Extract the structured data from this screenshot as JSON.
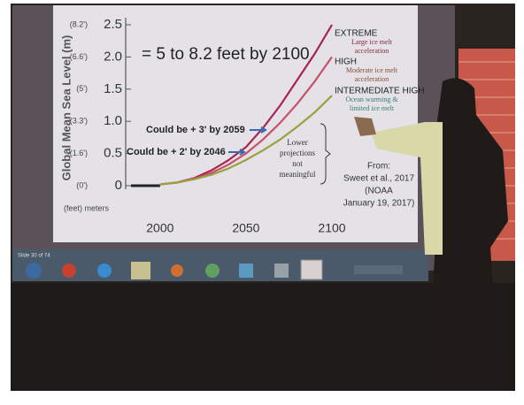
{
  "chart_data": {
    "type": "line",
    "subtitle": "= 5 to 8.2 feet by 2100",
    "ylabel": "Global Mean Sea Level (m)",
    "units_label": "(feet) meters",
    "x": [
      2000,
      2010,
      2020,
      2030,
      2040,
      2050,
      2060,
      2070,
      2080,
      2090,
      2100
    ],
    "xlim": [
      1980,
      2100
    ],
    "xticks": [
      2000,
      2050,
      2100
    ],
    "ylim": [
      0,
      2.5
    ],
    "yticks": [
      0,
      0.5,
      {
        "value": 1,
        "label": "1.0"
      },
      1.5,
      {
        "value": 2,
        "label": "2.0"
      },
      2.5
    ],
    "y2lim": [
      0,
      2.5
    ],
    "y2ticks": [
      {
        "value": 0,
        "label": "(0')"
      },
      {
        "value": 0.5,
        "label": "(1.6')"
      },
      {
        "value": 1,
        "label": "(3.3')"
      },
      {
        "value": 1.5,
        "label": "(5')"
      },
      {
        "value": 2,
        "label": "(6.6')"
      },
      {
        "value": 2.5,
        "label": "(8.2')"
      }
    ],
    "series": [
      {
        "name": "EXTREME",
        "description": [
          "Large ice melt",
          "acceleration"
        ],
        "color": "#a8244c",
        "desc_color": "#8a2a3a",
        "values": [
          0.02,
          0.05,
          0.12,
          0.24,
          0.4,
          0.6,
          0.9,
          1.25,
          1.65,
          2.05,
          2.5
        ]
      },
      {
        "name": "HIGH",
        "description": [
          "Moderate ice melt",
          "acceleration"
        ],
        "color": "#c8506a",
        "desc_color": "#8a4a3a",
        "values": [
          0.02,
          0.05,
          0.11,
          0.2,
          0.33,
          0.5,
          0.72,
          0.98,
          1.28,
          1.62,
          2.0
        ]
      },
      {
        "name": "INTERMEDIATE HIGH",
        "description": [
          "Ocean warming &",
          "limited ice melt"
        ],
        "color": "#9aa040",
        "desc_color": "#3a7a7a",
        "values": [
          0.02,
          0.05,
          0.1,
          0.17,
          0.27,
          0.4,
          0.55,
          0.72,
          0.92,
          1.14,
          1.4
        ]
      }
    ],
    "annotations": [
      "Could be + 3' by 2059",
      "Could be + 2' by 2046"
    ],
    "note": [
      "Lower",
      "projections",
      "not",
      "meaningful"
    ],
    "source": [
      "From:",
      "Sweet et al., 2017",
      "(NOAA",
      "January 19, 2017)"
    ]
  },
  "taskbar": {
    "slide_status": "Slide 30 of 74"
  }
}
